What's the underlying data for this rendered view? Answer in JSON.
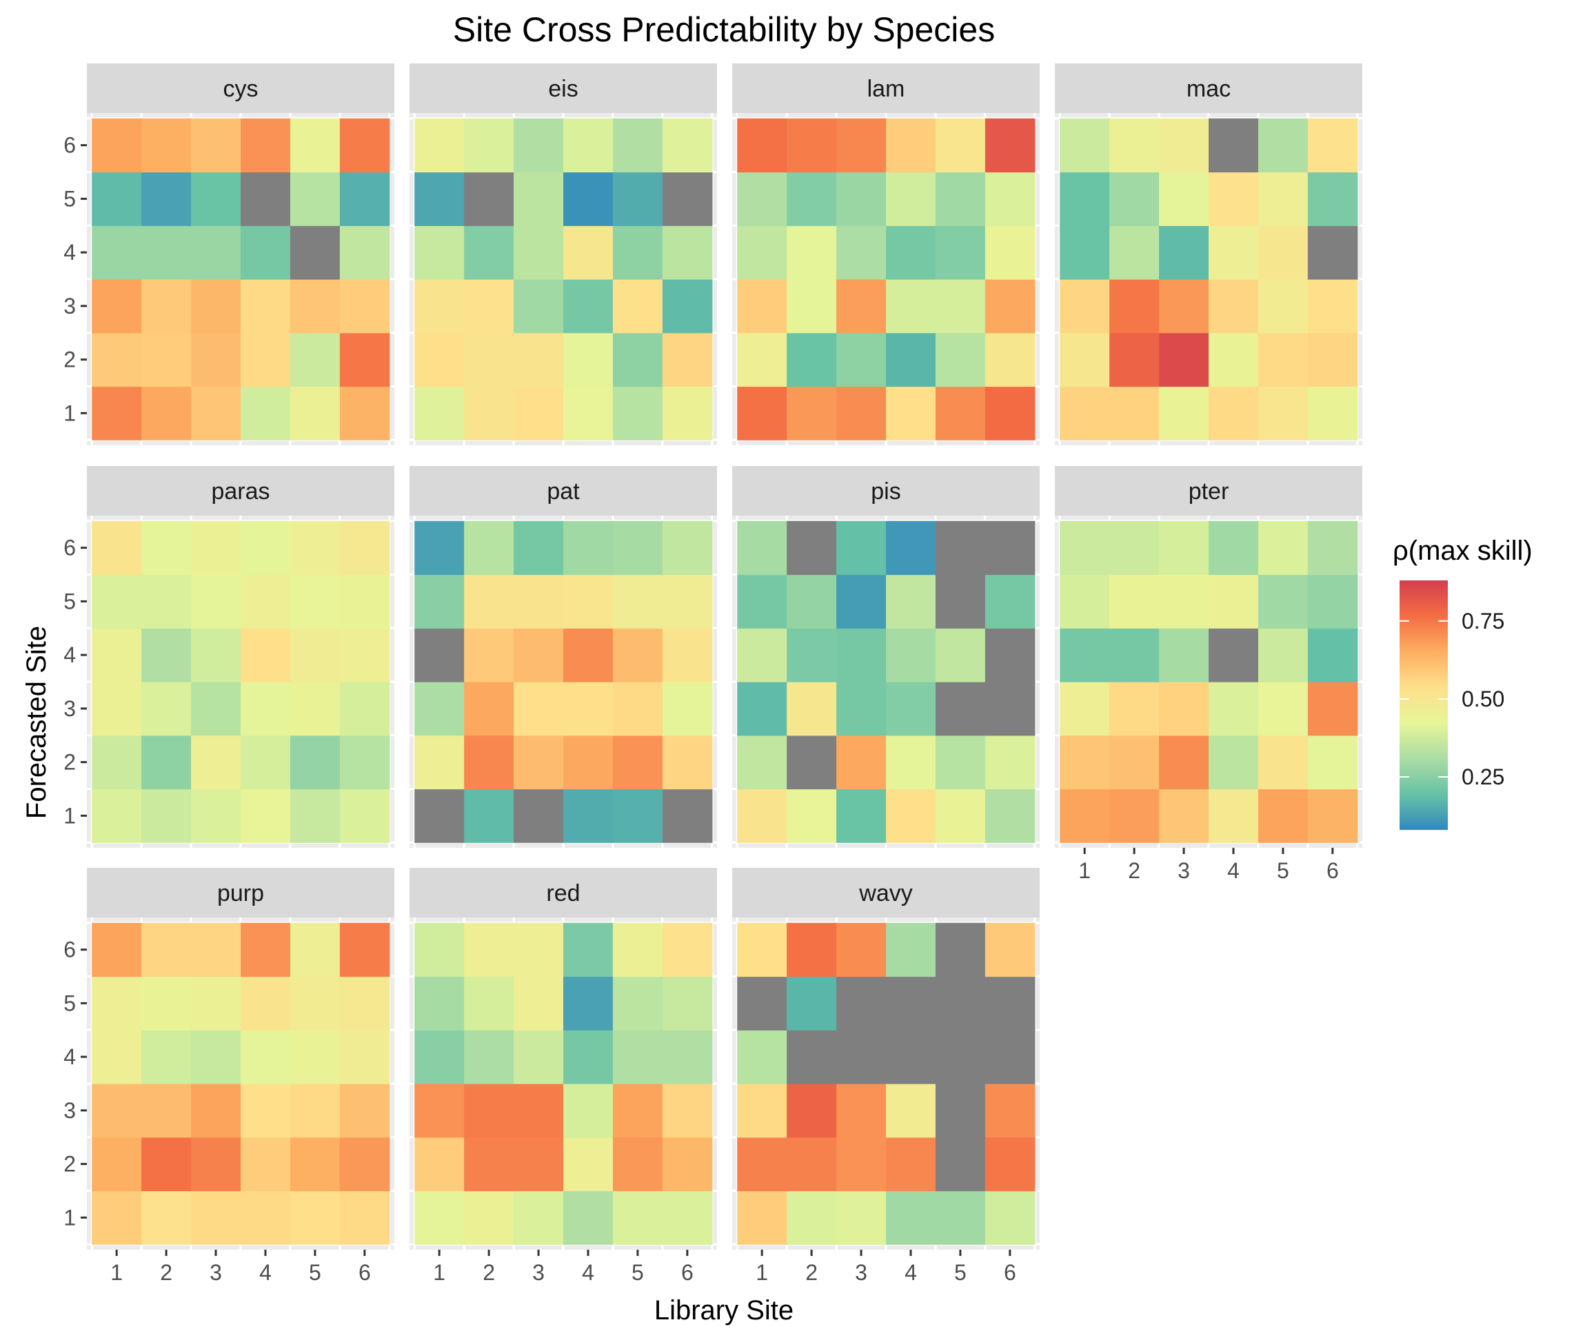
{
  "chart_data": {
    "type": "heatmap",
    "title": "Site Cross Predictability by Species",
    "xlabel": "Library Site",
    "ylabel": "Forecasted Site",
    "x_categories": [
      "1",
      "2",
      "3",
      "4",
      "5",
      "6"
    ],
    "y_categories": [
      "1",
      "2",
      "3",
      "4",
      "5",
      "6"
    ],
    "legend": {
      "title": "ρ(max skill)",
      "ticks": [
        "0.25",
        "0.50",
        "0.75"
      ],
      "tick_values": [
        0.25,
        0.5,
        0.75
      ],
      "range": [
        0.08,
        0.88
      ],
      "placement": "right",
      "colors": [
        "#3288bd",
        "#66c2a5",
        "#abdda4",
        "#e6f598",
        "#fee08b",
        "#fdae61",
        "#f46d43",
        "#d53e4f"
      ],
      "missing_color": "#7f7f7f"
    },
    "grid": true,
    "note": "rows listed from forecasted site 1 (bottom) to 6 (top); columns are library sites 1-6; null = missing (grey)",
    "panels": [
      {
        "name": "cys",
        "values": [
          [
            0.72,
            0.66,
            0.6,
            0.38,
            0.45,
            0.64
          ],
          [
            0.59,
            0.58,
            0.62,
            0.55,
            0.37,
            0.75
          ],
          [
            0.67,
            0.59,
            0.63,
            0.55,
            0.6,
            0.58
          ],
          [
            0.28,
            0.28,
            0.28,
            0.22,
            null,
            0.35
          ],
          [
            0.18,
            0.13,
            0.2,
            null,
            0.33,
            0.16
          ],
          [
            0.67,
            0.65,
            0.61,
            0.7,
            0.44,
            0.74
          ]
        ]
      },
      {
        "name": "eis",
        "values": [
          [
            0.41,
            0.52,
            0.54,
            0.43,
            0.33,
            0.45
          ],
          [
            0.54,
            0.52,
            0.52,
            0.42,
            0.26,
            0.56
          ],
          [
            0.52,
            0.53,
            0.29,
            0.22,
            0.54,
            0.18
          ],
          [
            0.36,
            0.24,
            0.34,
            0.5,
            0.26,
            0.34
          ],
          [
            0.14,
            null,
            0.34,
            0.1,
            0.15,
            null
          ],
          [
            0.45,
            0.4,
            0.32,
            0.4,
            0.32,
            0.41
          ]
        ]
      },
      {
        "name": "lam",
        "values": [
          [
            0.76,
            0.69,
            0.71,
            0.54,
            0.71,
            0.77
          ],
          [
            0.46,
            0.2,
            0.26,
            0.17,
            0.33,
            0.5
          ],
          [
            0.58,
            0.42,
            0.68,
            0.39,
            0.39,
            0.66
          ],
          [
            0.35,
            0.42,
            0.31,
            0.22,
            0.24,
            0.44
          ],
          [
            0.32,
            0.24,
            0.28,
            0.38,
            0.29,
            0.4
          ],
          [
            0.76,
            0.74,
            0.72,
            0.58,
            0.51,
            0.82
          ]
        ]
      },
      {
        "name": "mac",
        "values": [
          [
            0.57,
            0.57,
            0.44,
            0.55,
            0.51,
            0.44
          ],
          [
            0.5,
            0.79,
            0.85,
            0.44,
            0.55,
            0.56
          ],
          [
            0.56,
            0.75,
            0.69,
            0.56,
            0.48,
            0.54
          ],
          [
            0.2,
            0.34,
            0.18,
            0.46,
            0.5,
            null
          ],
          [
            0.2,
            0.29,
            0.42,
            0.53,
            0.46,
            0.23
          ],
          [
            0.37,
            0.45,
            0.47,
            null,
            0.32,
            0.53
          ]
        ]
      },
      {
        "name": "paras",
        "values": [
          [
            0.4,
            0.37,
            0.4,
            0.43,
            0.36,
            0.4
          ],
          [
            0.37,
            0.26,
            0.46,
            0.39,
            0.27,
            0.33
          ],
          [
            0.45,
            0.4,
            0.33,
            0.42,
            0.44,
            0.39
          ],
          [
            0.45,
            0.32,
            0.38,
            0.54,
            0.47,
            0.46
          ],
          [
            0.4,
            0.4,
            0.42,
            0.46,
            0.43,
            0.44
          ],
          [
            0.52,
            0.42,
            0.45,
            0.42,
            0.46,
            0.49
          ]
        ]
      },
      {
        "name": "pat",
        "values": [
          [
            null,
            0.18,
            null,
            0.15,
            0.16,
            null
          ],
          [
            0.46,
            0.72,
            0.62,
            0.66,
            0.7,
            0.56
          ],
          [
            0.31,
            0.66,
            0.54,
            0.54,
            0.55,
            0.42
          ],
          [
            null,
            0.59,
            0.62,
            0.71,
            0.62,
            0.52
          ],
          [
            0.25,
            0.52,
            0.52,
            0.51,
            0.47,
            0.47
          ],
          [
            0.13,
            0.33,
            0.22,
            0.29,
            0.3,
            0.35
          ]
        ]
      },
      {
        "name": "pis",
        "values": [
          [
            0.52,
            0.43,
            0.2,
            0.54,
            0.44,
            0.32
          ],
          [
            0.35,
            null,
            0.66,
            0.42,
            0.33,
            0.4
          ],
          [
            0.18,
            0.5,
            0.22,
            0.24,
            null,
            null
          ],
          [
            0.37,
            0.23,
            0.22,
            0.3,
            0.35,
            null
          ],
          [
            0.22,
            0.27,
            0.12,
            0.35,
            null,
            0.22
          ],
          [
            0.3,
            null,
            0.19,
            0.11,
            null,
            null
          ]
        ]
      },
      {
        "name": "pter",
        "values": [
          [
            0.67,
            0.68,
            0.6,
            0.49,
            0.67,
            0.64
          ],
          [
            0.6,
            0.61,
            0.71,
            0.34,
            0.52,
            0.42
          ],
          [
            0.46,
            0.55,
            0.57,
            0.4,
            0.43,
            0.71
          ],
          [
            0.22,
            0.22,
            0.3,
            null,
            0.37,
            0.19
          ],
          [
            0.39,
            0.44,
            0.44,
            0.45,
            0.29,
            0.27
          ],
          [
            0.37,
            0.37,
            0.39,
            0.29,
            0.4,
            0.32
          ]
        ]
      },
      {
        "name": "purp",
        "values": [
          [
            0.58,
            0.53,
            0.55,
            0.55,
            0.54,
            0.55
          ],
          [
            0.65,
            0.76,
            0.73,
            0.58,
            0.65,
            0.69
          ],
          [
            0.62,
            0.62,
            0.67,
            0.54,
            0.55,
            0.61
          ],
          [
            0.46,
            0.38,
            0.36,
            0.42,
            0.44,
            0.47
          ],
          [
            0.46,
            0.44,
            0.45,
            0.52,
            0.48,
            0.49
          ],
          [
            0.67,
            0.56,
            0.56,
            0.7,
            0.46,
            0.74
          ]
        ]
      },
      {
        "name": "red",
        "values": [
          [
            0.42,
            0.45,
            0.4,
            0.32,
            0.4,
            0.4
          ],
          [
            0.58,
            0.73,
            0.73,
            0.46,
            0.69,
            0.63
          ],
          [
            0.7,
            0.74,
            0.74,
            0.39,
            0.67,
            0.56
          ],
          [
            0.25,
            0.31,
            0.37,
            0.22,
            0.32,
            0.32
          ],
          [
            0.3,
            0.39,
            0.46,
            0.13,
            0.34,
            0.36
          ],
          [
            0.38,
            0.46,
            0.46,
            0.23,
            0.45,
            0.53
          ]
        ]
      },
      {
        "name": "wavy",
        "values": [
          [
            0.58,
            0.4,
            0.41,
            0.29,
            0.29,
            0.38
          ],
          [
            0.73,
            0.73,
            0.7,
            0.72,
            null,
            0.75
          ],
          [
            0.55,
            0.79,
            0.7,
            0.48,
            null,
            0.71
          ],
          [
            0.33,
            null,
            null,
            null,
            null,
            null
          ],
          [
            null,
            0.17,
            null,
            null,
            null,
            null
          ],
          [
            0.54,
            0.76,
            0.71,
            0.3,
            null,
            0.59
          ]
        ]
      }
    ]
  }
}
